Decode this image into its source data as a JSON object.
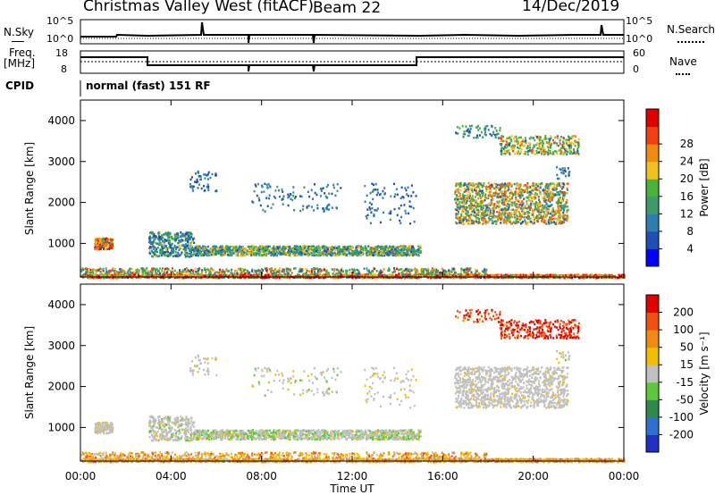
{
  "header": {
    "station": "Christmas Valley West (fitACF)",
    "beam": "Beam 22",
    "date": "14/Dec/2019"
  },
  "top_panels": {
    "nsky_label": "N.Sky",
    "nsky_ticks": [
      "10^5",
      "10^0"
    ],
    "nsearch_label": "N.Search",
    "nsearch_ticks": [
      "10^5",
      "10^0"
    ],
    "freq_label_1": "Freq.",
    "freq_label_2": "[MHz]",
    "freq_ticks": [
      "18",
      "8"
    ],
    "nave_label": "Nave",
    "nave_ticks": [
      "60",
      "0"
    ],
    "cpid_label": "CPID",
    "cpid_text": "normal (fast) 151 RF"
  },
  "chart_data": [
    {
      "type": "heatmap",
      "title": "",
      "xlabel": "",
      "ylabel": "Slant Range [km]",
      "x_ticks": [
        "00:00",
        "04:00",
        "08:00",
        "12:00",
        "16:00",
        "20:00",
        "00:00"
      ],
      "y_ticks": [
        1000,
        2000,
        3000,
        4000
      ],
      "xlim": [
        0,
        24
      ],
      "ylim": [
        180,
        4500
      ],
      "colorbar": {
        "label": "Power [dB]",
        "ticks": [
          "4",
          "8",
          "12",
          "16",
          "20",
          "24",
          "28"
        ],
        "colors": [
          "#0000ff",
          "#1d4fb5",
          "#2e7db0",
          "#3f9a6a",
          "#49b239",
          "#f0c020",
          "#f08a10",
          "#f04010",
          "#e00000"
        ]
      }
    },
    {
      "type": "heatmap",
      "title": "",
      "xlabel": "Time UT",
      "ylabel": "Slant Range [km]",
      "x_ticks": [
        "00:00",
        "04:00",
        "08:00",
        "12:00",
        "16:00",
        "20:00",
        "00:00"
      ],
      "y_ticks": [
        1000,
        2000,
        3000,
        4000
      ],
      "xlim": [
        0,
        24
      ],
      "ylim": [
        180,
        4500
      ],
      "colorbar": {
        "label": "Velocity [m s⁻¹]",
        "ticks": [
          "200",
          "100",
          "50",
          "15",
          "-15",
          "-50",
          "-100",
          "-200"
        ],
        "colors": [
          "#2030c0",
          "#2f6fd0",
          "#2e8a4a",
          "#5cc83c",
          "#c0c0c0",
          "#f0c000",
          "#f08a10",
          "#f05010",
          "#e00000"
        ]
      }
    }
  ]
}
